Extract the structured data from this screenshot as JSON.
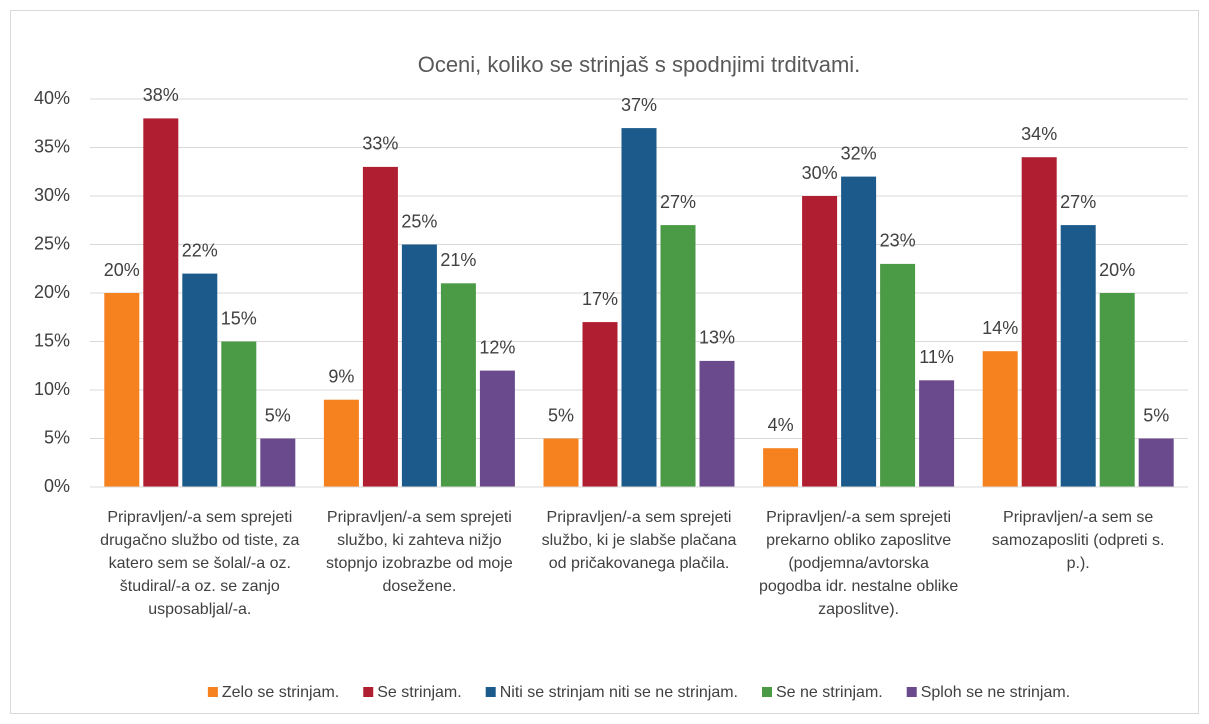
{
  "chart_data": {
    "type": "bar",
    "title": "Oceni, koliko se strinjaš s spodnjimi trditvami.",
    "categories": [
      "Pripravljen/-a sem sprejeti drugačno službo od tiste, za katero sem se šolal/-a oz. študiral/-a oz. se zanjo usposabljal/-a.",
      "Pripravljen/-a sem sprejeti službo, ki zahteva nižjo stopnjo izobrazbe od moje dosežene.",
      "Pripravljen/-a sem sprejeti službo, ki je slabše plačana od pričakovanega plačila.",
      "Pripravljen/-a sem sprejeti prekarno obliko zaposlitve (podjemna/avtorska pogodba idr. nestalne oblike zaposlitve).",
      "Pripravljen/-a sem se samozaposliti (odpreti s. p.)."
    ],
    "series": [
      {
        "name": "Zelo se strinjam.",
        "color": "#f5821f",
        "values": [
          20,
          9,
          5,
          4,
          14
        ],
        "value_labels": [
          "20%",
          "9%",
          "5%",
          "4%",
          "14%"
        ]
      },
      {
        "name": "Se strinjam.",
        "color": "#b01f31",
        "values": [
          38,
          33,
          17,
          30,
          34
        ],
        "value_labels": [
          "38%",
          "33%",
          "17%",
          "30%",
          "34%"
        ]
      },
      {
        "name": "Niti se strinjam niti se ne strinjam.",
        "color": "#1b5a8a",
        "values": [
          22,
          25,
          37,
          32,
          27
        ],
        "value_labels": [
          "22%",
          "25%",
          "37%",
          "32%",
          "27%"
        ]
      },
      {
        "name": "Se ne strinjam.",
        "color": "#4a9a46",
        "values": [
          15,
          21,
          27,
          23,
          20
        ],
        "value_labels": [
          "15%",
          "21%",
          "27%",
          "23%",
          "20%"
        ]
      },
      {
        "name": "Sploh se ne strinjam.",
        "color": "#6a4a8c",
        "values": [
          5,
          12,
          13,
          11,
          5
        ],
        "value_labels": [
          "5%",
          "12%",
          "13%",
          "11%",
          "5%"
        ]
      }
    ],
    "ylim": [
      0,
      40
    ],
    "yticks": [
      {
        "value": 0,
        "label": "0%"
      },
      {
        "value": 5,
        "label": "5%"
      },
      {
        "value": 10,
        "label": "10%"
      },
      {
        "value": 15,
        "label": "15%"
      },
      {
        "value": 20,
        "label": "20%"
      },
      {
        "value": 25,
        "label": "25%"
      },
      {
        "value": 30,
        "label": "30%"
      },
      {
        "value": 35,
        "label": "35%"
      },
      {
        "value": 40,
        "label": "40%"
      }
    ],
    "grid": true,
    "legend": "bottom"
  }
}
